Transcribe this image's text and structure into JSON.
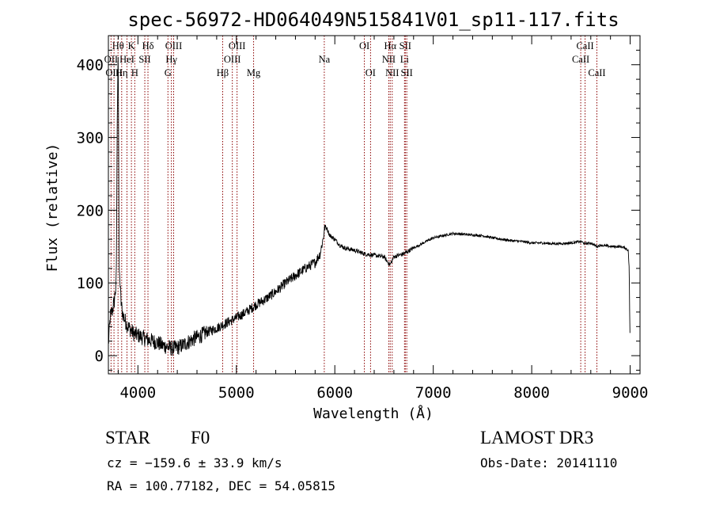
{
  "chart_data": {
    "type": "line",
    "title": "spec-56972-HD064049N515841V01_sp11-117.fits",
    "xlabel": "Wavelength (Å)",
    "ylabel": "Flux (relative)",
    "xlim": [
      3700,
      9100
    ],
    "ylim": [
      -25,
      440
    ],
    "xticks": [
      4000,
      5000,
      6000,
      7000,
      8000,
      9000
    ],
    "yticks": [
      0,
      100,
      200,
      300,
      400
    ],
    "line_color": "#000000",
    "marker_color": "#8b0000",
    "series": [
      {
        "x": [
          3700,
          3720,
          3740,
          3760,
          3780,
          3790,
          3795,
          3800,
          3805,
          3810,
          3830,
          3850,
          3880,
          3900,
          3930,
          3960,
          4000,
          4050,
          4100,
          4150,
          4200,
          4250,
          4300,
          4350,
          4400,
          4450,
          4500,
          4550,
          4600,
          4700,
          4800,
          4900,
          5000,
          5100,
          5200,
          5300,
          5400,
          5500,
          5600,
          5700,
          5800,
          5850,
          5880,
          5900,
          5920,
          5950,
          6000,
          6050,
          6100,
          6200,
          6300,
          6400,
          6500,
          6530,
          6560,
          6580,
          6600,
          6700,
          6800,
          6900,
          7000,
          7100,
          7200,
          7300,
          7400,
          7500,
          7600,
          7700,
          7800,
          7900,
          8000,
          8100,
          8200,
          8300,
          8400,
          8500,
          8540,
          8600,
          8660,
          8700,
          8800,
          8900,
          8950,
          8980,
          8990,
          8995,
          9000
        ],
        "y": [
          15,
          55,
          62,
          75,
          100,
          320,
          380,
          420,
          260,
          120,
          70,
          55,
          45,
          40,
          35,
          30,
          28,
          25,
          22,
          20,
          18,
          14,
          12,
          10,
          11,
          14,
          18,
          22,
          25,
          32,
          38,
          45,
          52,
          60,
          70,
          78,
          88,
          100,
          110,
          120,
          128,
          140,
          160,
          178,
          175,
          165,
          160,
          152,
          148,
          145,
          140,
          138,
          136,
          130,
          125,
          130,
          136,
          140,
          148,
          155,
          162,
          165,
          168,
          167,
          166,
          165,
          162,
          160,
          158,
          157,
          155,
          155,
          154,
          154,
          155,
          157,
          154,
          155,
          150,
          152,
          150,
          150,
          148,
          145,
          120,
          60,
          10
        ]
      }
    ],
    "line_markers": [
      {
        "label": "Hθ",
        "wavelength": 3798,
        "row": 1
      },
      {
        "label": "K",
        "wavelength": 3934,
        "row": 1
      },
      {
        "label": "Hδ",
        "wavelength": 4102,
        "row": 1
      },
      {
        "label": "OIII",
        "wavelength": 4363,
        "row": 1
      },
      {
        "label": "OIII",
        "wavelength": 5007,
        "row": 1
      },
      {
        "label": "OI",
        "wavelength": 6300,
        "row": 1
      },
      {
        "label": "Hα",
        "wavelength": 6563,
        "row": 1
      },
      {
        "label": "SII",
        "wavelength": 6716,
        "row": 1
      },
      {
        "label": "CaII",
        "wavelength": 8542,
        "row": 1
      },
      {
        "label": "OII",
        "wavelength": 3727,
        "row": 2
      },
      {
        "label": "HeI",
        "wavelength": 3889,
        "row": 2
      },
      {
        "label": "SII",
        "wavelength": 4070,
        "row": 2
      },
      {
        "label": "Hγ",
        "wavelength": 4340,
        "row": 2
      },
      {
        "label": "OIII",
        "wavelength": 4959,
        "row": 2
      },
      {
        "label": "Na",
        "wavelength": 5893,
        "row": 2
      },
      {
        "label": "NII",
        "wavelength": 6548,
        "row": 2
      },
      {
        "label": "Li",
        "wavelength": 6708,
        "row": 2
      },
      {
        "label": "CaII",
        "wavelength": 8498,
        "row": 2
      },
      {
        "label": "OIII",
        "wavelength": 3757,
        "row": 3
      },
      {
        "label": "Hη",
        "wavelength": 3835,
        "row": 3
      },
      {
        "label": "H",
        "wavelength": 3968,
        "row": 3
      },
      {
        "label": "G",
        "wavelength": 4305,
        "row": 3
      },
      {
        "label": "Hβ",
        "wavelength": 4861,
        "row": 3
      },
      {
        "label": "Mg",
        "wavelength": 5175,
        "row": 3
      },
      {
        "label": "OI",
        "wavelength": 6363,
        "row": 3
      },
      {
        "label": "NII",
        "wavelength": 6583,
        "row": 3
      },
      {
        "label": "SII",
        "wavelength": 6731,
        "row": 3
      },
      {
        "label": "CaII",
        "wavelength": 8662,
        "row": 3
      }
    ]
  },
  "info": {
    "object_type": "STAR",
    "subclass": "F0",
    "survey": "LAMOST DR3",
    "redshift": "cz = −159.6 ± 33.9 km/s",
    "obs_date": "Obs-Date: 20141110",
    "coords": "RA = 100.77182, DEC =  54.05815"
  }
}
